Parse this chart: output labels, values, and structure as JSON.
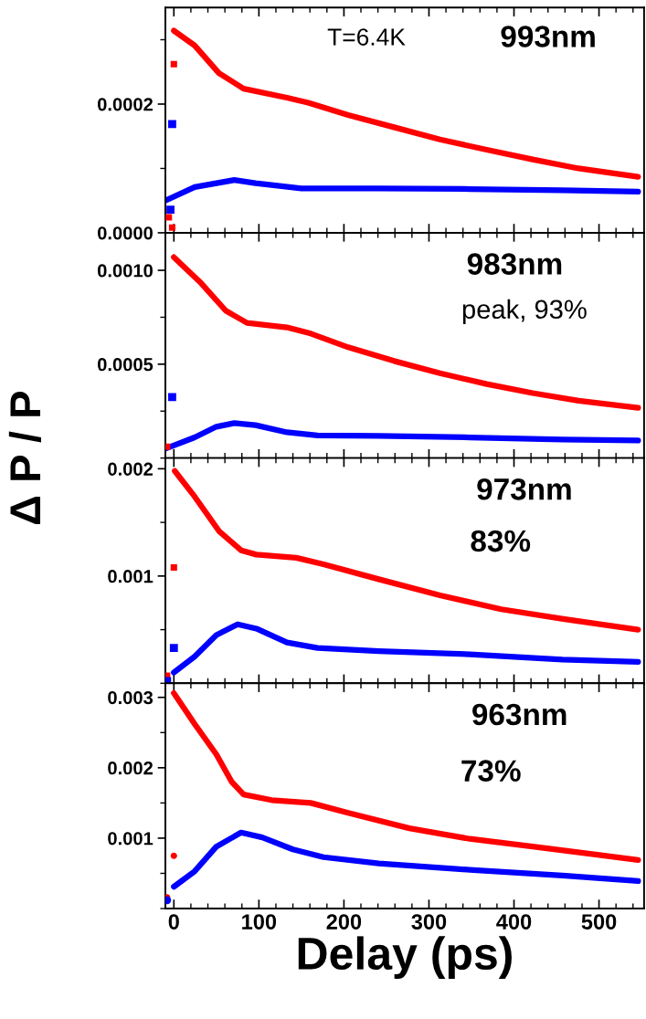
{
  "chart_data": [
    {
      "type": "line",
      "annotations": [
        "T=6.4K",
        "993nm"
      ],
      "ylabel": "Δ P / P",
      "xlim": [
        -10,
        553
      ],
      "xticks": [
        0,
        100,
        200,
        300,
        400,
        500
      ],
      "ylim": [
        0,
        0.00035
      ],
      "yticks": [
        {
          "value": 0,
          "label": "0.0000"
        },
        0.0002
      ],
      "tick_labels": "y",
      "grid": false,
      "legend": false,
      "series": [
        {
          "color": "#ff0000",
          "x": [
            0,
            24.5,
            53,
            82,
            133,
            158,
            205,
            259,
            313,
            368,
            422,
            476,
            546
          ],
          "values": [
            0.000314,
            0.000291,
            0.000248,
            0.000224,
            0.00021,
            0.000202,
            0.000183,
            0.000164,
            0.000145,
            0.000129,
            0.000114,
            0.0001,
            8.7e-05
          ]
        },
        {
          "color": "#0000ff",
          "x": [
            -10,
            24.5,
            71,
            96,
            150,
            240,
            348,
            457,
            546
          ],
          "values": [
            5e-05,
            7.1e-05,
            8.2e-05,
            7.7e-05,
            6.9e-05,
            6.9e-05,
            6.8e-05,
            6.6e-05,
            6.4e-05
          ]
        },
        {
          "type": "scatter",
          "marker": "square",
          "color": "#ff0000",
          "x": [
            0,
            -6,
            -2
          ],
          "values": [
            0.000262,
            2.4e-05,
            8e-06
          ]
        },
        {
          "type": "scatter",
          "marker": "square",
          "color": "#0000ff",
          "x": [
            -2,
            -4
          ],
          "values": [
            0.000169,
            3.6e-05
          ]
        }
      ]
    },
    {
      "type": "line",
      "annotations": [
        "983nm",
        "peak, 93%"
      ],
      "xlim": [
        -10,
        553
      ],
      "xticks": [
        0,
        100,
        200,
        300,
        400,
        500
      ],
      "ylim": [
        0,
        0.0012
      ],
      "yticks": [
        {
          "value": 0.0005,
          "label": "0.0005"
        },
        {
          "value": 0.001,
          "label": "0.0010"
        }
      ],
      "tick_labels": "y",
      "grid": false,
      "legend": false,
      "series": [
        {
          "color": "#ff0000",
          "x": [
            0,
            32,
            61,
            86,
            133,
            161,
            205,
            259,
            313,
            368,
            422,
            476,
            546
          ],
          "values": [
            0.00107,
            0.000932,
            0.000785,
            0.00072,
            0.000696,
            0.000663,
            0.00059,
            0.000517,
            0.000452,
            0.000394,
            0.000346,
            0.000305,
            0.000268
          ]
        },
        {
          "color": "#0000ff",
          "x": [
            -10,
            24.5,
            50,
            71,
            96,
            133,
            169,
            240,
            348,
            457,
            546
          ],
          "values": [
            5e-05,
            0.00011,
            0.000167,
            0.000186,
            0.000175,
            0.000137,
            0.000121,
            0.000118,
            0.00011,
            9.87e-05,
            9.34e-05
          ]
        },
        {
          "type": "scatter",
          "marker": "square",
          "color": "#ff0000",
          "x": [
            -8
          ],
          "values": [
            6e-05
          ]
        },
        {
          "type": "scatter",
          "marker": "square",
          "color": "#0000ff",
          "x": [
            -2
          ],
          "values": [
            0.000325
          ]
        }
      ]
    },
    {
      "type": "line",
      "annotations": [
        "973nm",
        "83%"
      ],
      "xlim": [
        -10,
        553
      ],
      "xticks": [
        0,
        100,
        200,
        300,
        400,
        500
      ],
      "ylim": [
        0,
        0.0021
      ],
      "yticks": [
        0.001,
        0.002
      ],
      "tick_labels": "y",
      "grid": false,
      "legend": false,
      "series": [
        {
          "color": "#ff0000",
          "x": [
            1,
            24.5,
            53,
            79,
            97,
            144,
            176,
            241,
            313,
            385,
            458,
            546
          ],
          "values": [
            0.00198,
            0.00174,
            0.00142,
            0.00124,
            0.0012,
            0.00117,
            0.00111,
            0.00097,
            0.00082,
            0.00069,
            0.0006,
            0.0005
          ]
        },
        {
          "color": "#0000ff",
          "x": [
            0,
            24.5,
            50,
            75,
            97,
            133,
            169,
            241,
            348,
            457,
            546
          ],
          "values": [
            0.0001,
            0.00025,
            0.00045,
            0.00055,
            0.00051,
            0.00038,
            0.00033,
            0.0003,
            0.00027,
            0.00022,
            0.0002
          ]
        },
        {
          "type": "scatter",
          "marker": "square",
          "color": "#ff0000",
          "x": [
            0,
            -8
          ],
          "values": [
            0.00108,
            7e-05
          ]
        },
        {
          "type": "scatter",
          "marker": "square",
          "color": "#0000ff",
          "x": [
            0,
            -8
          ],
          "values": [
            0.00033,
            2e-05
          ]
        }
      ]
    },
    {
      "type": "line",
      "annotations": [
        "963nm",
        "73%"
      ],
      "xlabel": "Delay (ps)",
      "xlim": [
        -10,
        553
      ],
      "xticks": [
        0,
        100,
        200,
        300,
        400,
        500
      ],
      "ylim": [
        0,
        0.0032
      ],
      "yticks": [
        0.001,
        0.002,
        0.003
      ],
      "grid": false,
      "legend": false,
      "series": [
        {
          "color": "#ff0000",
          "x": [
            0,
            24.5,
            50,
            68,
            82,
            115,
            161,
            205,
            277,
            348,
            422,
            494,
            546
          ],
          "values": [
            0.00306,
            0.00262,
            0.00219,
            0.0018,
            0.00162,
            0.00154,
            0.0015,
            0.00136,
            0.00114,
            0.00099,
            0.00088,
            0.00077,
            0.00069
          ]
        },
        {
          "color": "#0000ff",
          "x": [
            0,
            24.5,
            50,
            79,
            104,
            140,
            176,
            241,
            348,
            457,
            546
          ],
          "values": [
            0.00031,
            0.00053,
            0.00088,
            0.00108,
            0.00101,
            0.00084,
            0.00073,
            0.00064,
            0.00055,
            0.00047,
            0.00039
          ]
        },
        {
          "type": "scatter",
          "marker": "circle",
          "color": "#ff0000",
          "x": [
            0,
            -8
          ],
          "values": [
            0.00075,
            0.00016
          ]
        },
        {
          "type": "scatter",
          "marker": "circle",
          "color": "#0000ff",
          "x": [
            -8
          ],
          "values": [
            0.00012
          ]
        }
      ]
    }
  ]
}
